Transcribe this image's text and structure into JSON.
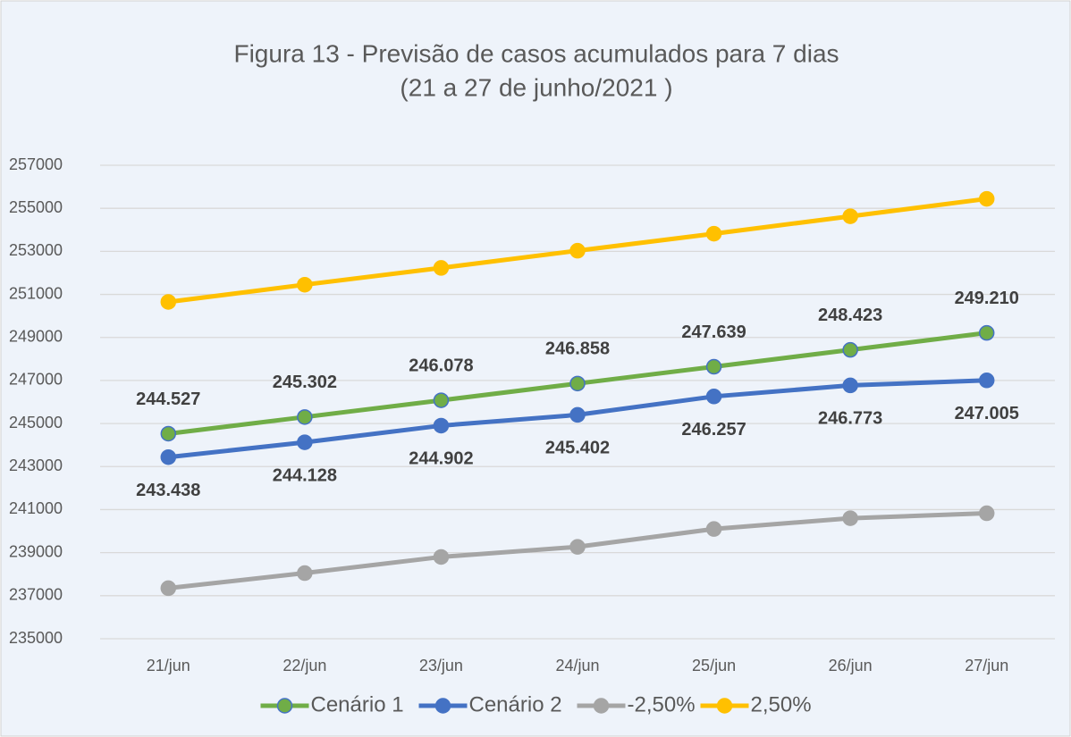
{
  "chart_data": {
    "type": "line",
    "title": "Figura 13 - Previsão de casos acumulados para 7 dias",
    "subtitle": "(21 a 27 de junho/2021 )",
    "categories": [
      "21/jun",
      "22/jun",
      "23/jun",
      "24/jun",
      "25/jun",
      "26/jun",
      "27/jun"
    ],
    "series": [
      {
        "name": "Cenário 1",
        "color": "#70ad47",
        "values": [
          244527,
          245302,
          246078,
          246858,
          247639,
          248423,
          249210
        ],
        "value_labels": [
          "244.527",
          "245.302",
          "246.078",
          "246.858",
          "247.639",
          "248.423",
          "249.210"
        ]
      },
      {
        "name": "Cenário 2",
        "color": "#4472c4",
        "values": [
          243438,
          244128,
          244902,
          245402,
          246257,
          246773,
          247005
        ],
        "value_labels": [
          "243.438",
          "244.128",
          "244.902",
          "245.402",
          "246.257",
          "246.773",
          "247.005"
        ]
      },
      {
        "name": "-2,50%",
        "color": "#a5a5a5",
        "values": [
          237350,
          238050,
          238800,
          239270,
          240100,
          240600,
          240830
        ]
      },
      {
        "name": "2,50%",
        "color": "#ffc000",
        "values": [
          250650,
          251450,
          252230,
          253030,
          253820,
          254630,
          255440
        ]
      }
    ],
    "ylim": [
      235000,
      257000
    ],
    "yticks": [
      235000,
      237000,
      239000,
      241000,
      243000,
      245000,
      247000,
      249000,
      251000,
      253000,
      255000,
      257000
    ],
    "grid": true,
    "legend": "bottom"
  }
}
